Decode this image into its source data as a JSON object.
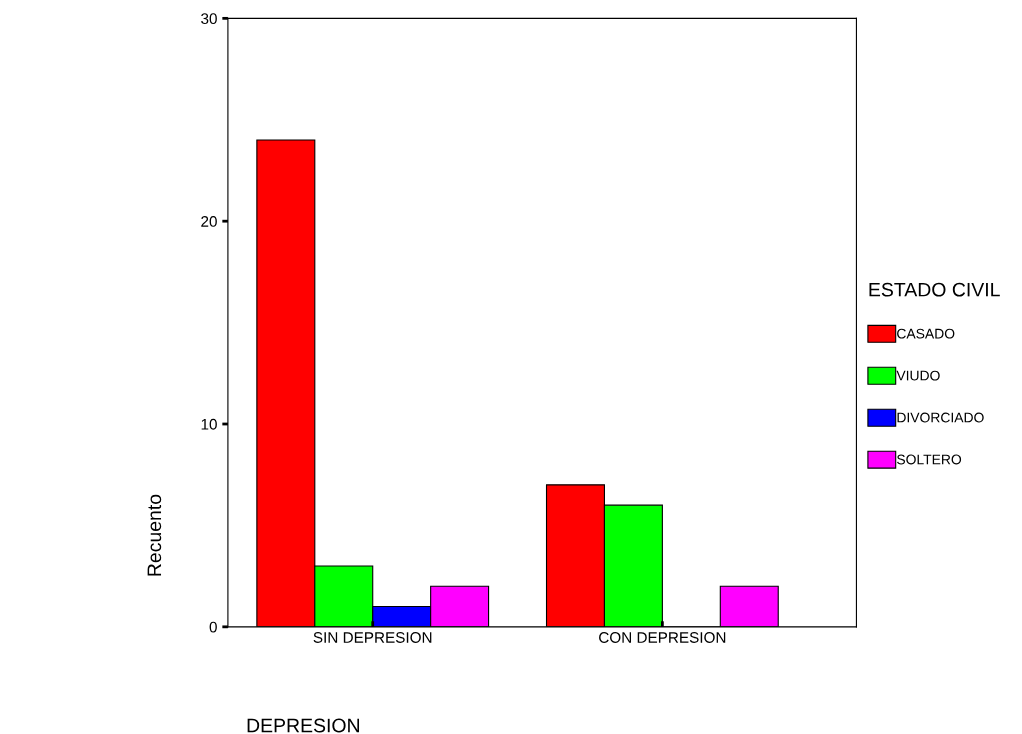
{
  "chart_data": {
    "type": "bar",
    "xlabel": "DEPRESION",
    "ylabel": "Recuento",
    "legend_title": "ESTADO CIVIL",
    "categories": [
      "SIN DEPRESION",
      "CON DEPRESION"
    ],
    "series": [
      {
        "name": "CASADO",
        "color": "#ff0000",
        "values": [
          24,
          7
        ]
      },
      {
        "name": "VIUDO",
        "color": "#00ff00",
        "values": [
          3,
          6
        ]
      },
      {
        "name": "DIVORCIADO",
        "color": "#0000ff",
        "values": [
          1,
          0
        ]
      },
      {
        "name": "SOLTERO",
        "color": "#ff00ff",
        "values": [
          2,
          2
        ]
      }
    ],
    "ylim": [
      0,
      30
    ],
    "yticks": [
      0,
      10,
      20,
      30
    ],
    "grid": false,
    "legend": "right"
  }
}
